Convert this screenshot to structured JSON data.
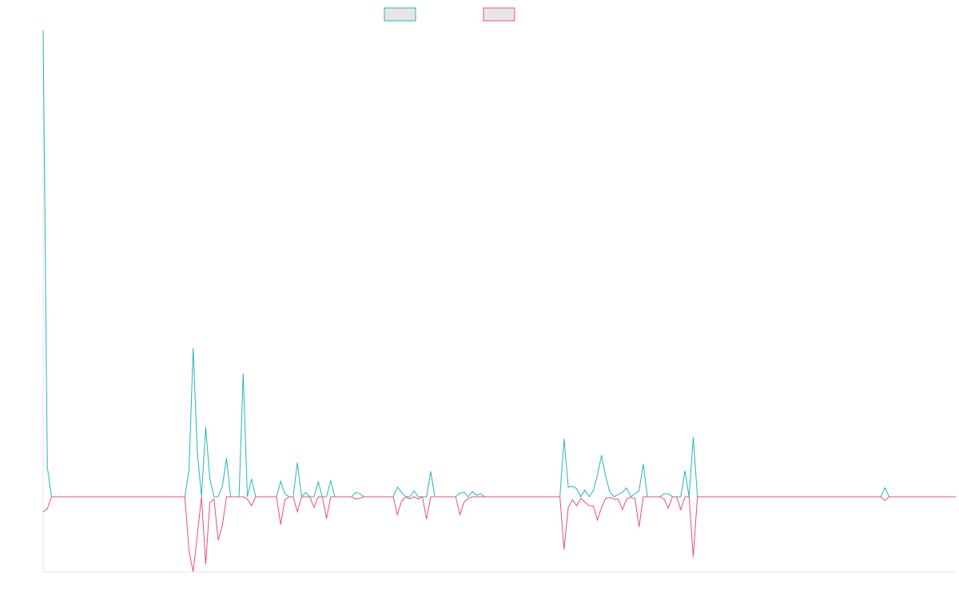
{
  "chart_data": {
    "type": "line",
    "title": "",
    "xlabel": "",
    "ylabel": "",
    "legend": "top-center",
    "grid": false,
    "ylim": [
      -100,
      630
    ],
    "x_count": 220,
    "series": [
      {
        "name": "",
        "color": "#26b5b8",
        "points": [
          [
            0,
            628
          ],
          [
            1,
            40
          ],
          [
            2,
            0
          ],
          [
            34,
            0
          ],
          [
            35,
            36
          ],
          [
            36,
            200
          ],
          [
            37,
            60
          ],
          [
            38,
            0
          ],
          [
            39,
            94
          ],
          [
            40,
            24
          ],
          [
            41,
            0
          ],
          [
            42,
            0
          ],
          [
            43,
            14
          ],
          [
            44,
            52
          ],
          [
            45,
            0
          ],
          [
            46,
            0
          ],
          [
            47,
            0
          ],
          [
            48,
            166
          ],
          [
            49,
            0
          ],
          [
            50,
            24
          ],
          [
            51,
            0
          ],
          [
            56,
            0
          ],
          [
            57,
            21
          ],
          [
            58,
            4
          ],
          [
            59,
            0
          ],
          [
            60,
            0
          ],
          [
            61,
            46
          ],
          [
            62,
            0
          ],
          [
            63,
            6
          ],
          [
            64,
            0
          ],
          [
            65,
            0
          ],
          [
            66,
            20
          ],
          [
            67,
            0
          ],
          [
            68,
            0
          ],
          [
            69,
            22
          ],
          [
            70,
            0
          ],
          [
            74,
            0
          ],
          [
            75,
            6
          ],
          [
            76,
            4
          ],
          [
            77,
            0
          ],
          [
            84,
            0
          ],
          [
            85,
            13
          ],
          [
            86,
            6
          ],
          [
            87,
            0
          ],
          [
            88,
            0
          ],
          [
            89,
            8
          ],
          [
            90,
            0
          ],
          [
            91,
            0
          ],
          [
            92,
            0
          ],
          [
            93,
            34
          ],
          [
            94,
            0
          ],
          [
            99,
            0
          ],
          [
            100,
            5
          ],
          [
            101,
            6
          ],
          [
            102,
            0
          ],
          [
            103,
            7
          ],
          [
            104,
            2
          ],
          [
            105,
            4
          ],
          [
            106,
            0
          ],
          [
            124,
            0
          ],
          [
            125,
            78
          ],
          [
            126,
            13
          ],
          [
            127,
            14
          ],
          [
            128,
            11
          ],
          [
            129,
            0
          ],
          [
            130,
            9
          ],
          [
            131,
            0
          ],
          [
            132,
            8
          ],
          [
            133,
            29
          ],
          [
            134,
            56
          ],
          [
            135,
            27
          ],
          [
            136,
            6
          ],
          [
            137,
            0
          ],
          [
            138,
            3
          ],
          [
            139,
            6
          ],
          [
            140,
            12
          ],
          [
            141,
            0
          ],
          [
            142,
            4
          ],
          [
            143,
            8
          ],
          [
            144,
            44
          ],
          [
            145,
            0
          ],
          [
            148,
            0
          ],
          [
            149,
            4
          ],
          [
            150,
            4
          ],
          [
            151,
            0
          ],
          [
            152,
            0
          ],
          [
            153,
            0
          ],
          [
            154,
            35
          ],
          [
            155,
            0
          ],
          [
            156,
            80
          ],
          [
            157,
            0
          ],
          [
            201,
            0
          ],
          [
            202,
            12
          ],
          [
            203,
            0
          ],
          [
            207,
            0
          ]
        ]
      },
      {
        "name": "",
        "color": "#ee4d7a",
        "points": [
          [
            0,
            -20
          ],
          [
            1,
            -16
          ],
          [
            2,
            0
          ],
          [
            34,
            0
          ],
          [
            35,
            -72
          ],
          [
            36,
            -100
          ],
          [
            37,
            -50
          ],
          [
            38,
            0
          ],
          [
            39,
            -90
          ],
          [
            40,
            -8
          ],
          [
            41,
            -3
          ],
          [
            42,
            -58
          ],
          [
            43,
            -38
          ],
          [
            44,
            0
          ],
          [
            48,
            0
          ],
          [
            49,
            -3
          ],
          [
            50,
            -12
          ],
          [
            51,
            0
          ],
          [
            56,
            0
          ],
          [
            57,
            -37
          ],
          [
            58,
            -4
          ],
          [
            59,
            0
          ],
          [
            60,
            0
          ],
          [
            61,
            -20
          ],
          [
            62,
            0
          ],
          [
            63,
            0
          ],
          [
            64,
            0
          ],
          [
            65,
            -14
          ],
          [
            66,
            0
          ],
          [
            67,
            0
          ],
          [
            68,
            -29
          ],
          [
            69,
            0
          ],
          [
            74,
            0
          ],
          [
            75,
            -3
          ],
          [
            76,
            -2
          ],
          [
            77,
            0
          ],
          [
            84,
            0
          ],
          [
            85,
            -24
          ],
          [
            86,
            -6
          ],
          [
            87,
            0
          ],
          [
            88,
            -3
          ],
          [
            89,
            0
          ],
          [
            90,
            -3
          ],
          [
            91,
            0
          ],
          [
            92,
            -30
          ],
          [
            93,
            0
          ],
          [
            99,
            0
          ],
          [
            100,
            -24
          ],
          [
            101,
            -7
          ],
          [
            102,
            -2
          ],
          [
            103,
            0
          ],
          [
            106,
            0
          ],
          [
            124,
            0
          ],
          [
            125,
            -70
          ],
          [
            126,
            -14
          ],
          [
            127,
            -4
          ],
          [
            128,
            -12
          ],
          [
            129,
            -2
          ],
          [
            130,
            -7
          ],
          [
            131,
            -12
          ],
          [
            132,
            -12
          ],
          [
            133,
            -31
          ],
          [
            134,
            -14
          ],
          [
            135,
            -2
          ],
          [
            136,
            -1
          ],
          [
            137,
            -3
          ],
          [
            138,
            -3
          ],
          [
            139,
            -17
          ],
          [
            140,
            -3
          ],
          [
            141,
            -1
          ],
          [
            142,
            -2
          ],
          [
            143,
            -40
          ],
          [
            144,
            0
          ],
          [
            145,
            0
          ],
          [
            148,
            0
          ],
          [
            149,
            -3
          ],
          [
            150,
            -15
          ],
          [
            151,
            0
          ],
          [
            152,
            0
          ],
          [
            153,
            -17
          ],
          [
            154,
            0
          ],
          [
            155,
            0
          ],
          [
            156,
            -80
          ],
          [
            157,
            0
          ],
          [
            201,
            0
          ],
          [
            202,
            -5
          ],
          [
            203,
            0
          ],
          [
            207,
            0
          ]
        ]
      }
    ]
  }
}
